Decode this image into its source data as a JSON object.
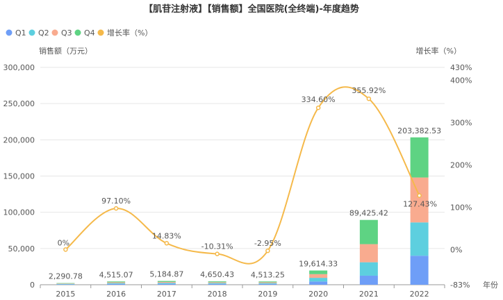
{
  "chart_data": {
    "type": "bar",
    "title": "【肌苷注射液】【销售额】全国医院(全终端)-年度趋势",
    "ylabel": "销售额（万元）",
    "y2label": "增长率（%）",
    "xlabel": "年份",
    "categories": [
      "2015",
      "2016",
      "2017",
      "2018",
      "2019",
      "2020",
      "2021",
      "2022"
    ],
    "ylim": [
      0,
      300000
    ],
    "y_ticks": [
      "0",
      "50,000",
      "100,000",
      "150,000",
      "200,000",
      "250,000",
      "300,000"
    ],
    "y2lim": [
      -83,
      430
    ],
    "y2_ticks": [
      "-83%",
      "0%",
      "100%",
      "200%",
      "300%",
      "400%",
      "430%"
    ],
    "series": [
      {
        "name": "Q1",
        "color": "#6e9ef7",
        "values": [
          570,
          1130,
          1300,
          1160,
          1130,
          4500,
          12500,
          40000
        ]
      },
      {
        "name": "Q2",
        "color": "#5dcfdf",
        "values": [
          570,
          1130,
          1300,
          1160,
          1130,
          5000,
          18500,
          46000
        ]
      },
      {
        "name": "Q3",
        "color": "#f9ab8f",
        "values": [
          570,
          1130,
          1300,
          1160,
          1130,
          5100,
          25000,
          62000
        ]
      },
      {
        "name": "Q4",
        "color": "#5ed383",
        "values": [
          580.78,
          1125.07,
          1284.87,
          1170.43,
          1123.25,
          5014.33,
          33425.42,
          55382.53
        ]
      }
    ],
    "totals": [
      2290.78,
      4515.07,
      5184.87,
      4650.43,
      4513.25,
      19614.33,
      89425.42,
      203382.53
    ],
    "total_labels": [
      "2,290.78",
      "4,515.07",
      "5,184.87",
      "4,650.43",
      "4,513.25",
      "19,614.33",
      "89,425.42",
      "203,382.53"
    ],
    "growth": {
      "name": "增长率（%）",
      "color": "#f5b94a",
      "values": [
        0,
        97.1,
        14.83,
        -10.31,
        -2.95,
        334.6,
        355.92,
        127.43
      ],
      "labels": [
        "0%",
        "97.10%",
        "14.83%",
        "-10.31%",
        "-2.95%",
        "334.60%",
        "355.92%",
        "127.43%"
      ]
    },
    "legend": [
      {
        "name": "Q1",
        "color": "#6e9ef7"
      },
      {
        "name": "Q2",
        "color": "#5dcfdf"
      },
      {
        "name": "Q3",
        "color": "#f9ab8f"
      },
      {
        "name": "Q4",
        "color": "#5ed383"
      },
      {
        "name": "增长率（%）",
        "color": "#f5b94a"
      }
    ],
    "legend_position": "top-left",
    "grid": true
  }
}
